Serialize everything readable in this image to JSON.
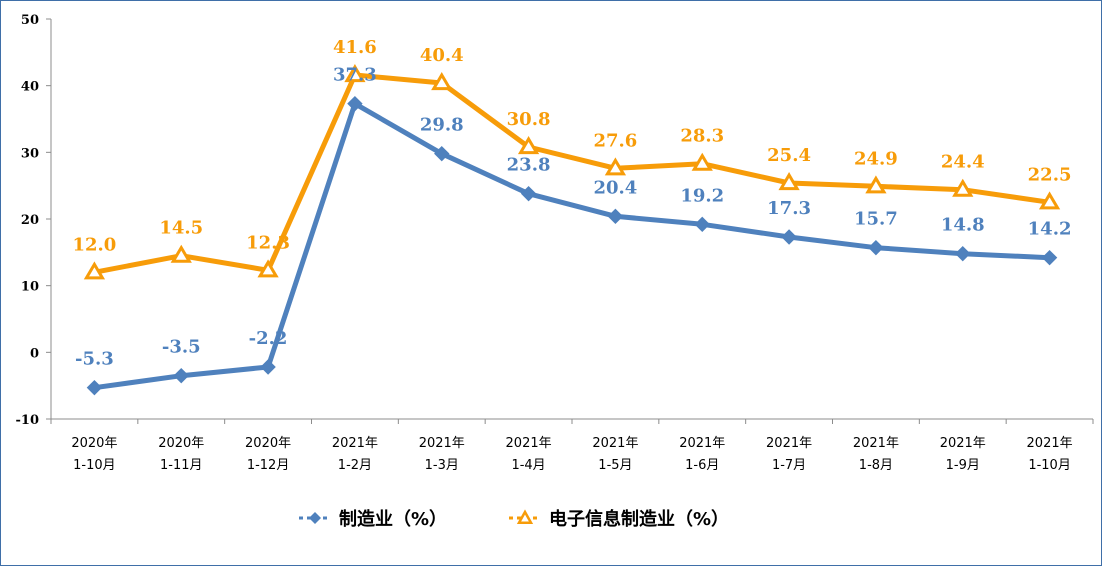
{
  "chart_data": {
    "type": "line",
    "categories": [
      [
        "2020年",
        "1-10月"
      ],
      [
        "2020年",
        "1-11月"
      ],
      [
        "2020年",
        "1-12月"
      ],
      [
        "2021年",
        "1-2月"
      ],
      [
        "2021年",
        "1-3月"
      ],
      [
        "2021年",
        "1-4月"
      ],
      [
        "2021年",
        "1-5月"
      ],
      [
        "2021年",
        "1-6月"
      ],
      [
        "2021年",
        "1-7月"
      ],
      [
        "2021年",
        "1-8月"
      ],
      [
        "2021年",
        "1-9月"
      ],
      [
        "2021年",
        "1-10月"
      ]
    ],
    "ylim": [
      -10,
      50
    ],
    "yticks": [
      "-10",
      "0",
      "10",
      "20",
      "30",
      "40",
      "50"
    ],
    "grid": false,
    "legend_position": "bottom",
    "series": [
      {
        "name": "制造业（%）",
        "color": "#4f81bd",
        "marker": "diamond",
        "values": [
          -5.3,
          -3.5,
          -2.2,
          37.3,
          29.8,
          23.8,
          20.4,
          19.2,
          17.3,
          15.7,
          14.8,
          14.2
        ],
        "labels": [
          "-5.3",
          "-3.5",
          "-2.2",
          "37.3",
          "29.8",
          "23.8",
          "20.4",
          "19.2",
          "17.3",
          "15.7",
          "14.8",
          "14.2"
        ]
      },
      {
        "name": "电子信息制造业（%）",
        "color": "#f79c09",
        "marker": "triangle",
        "values": [
          12.0,
          14.5,
          12.3,
          41.6,
          40.4,
          30.8,
          27.6,
          28.3,
          25.4,
          24.9,
          24.4,
          22.5
        ],
        "labels": [
          "12.0",
          "14.5",
          "12.3",
          "41.6",
          "40.4",
          "30.8",
          "27.6",
          "28.3",
          "25.4",
          "24.9",
          "24.4",
          "22.5"
        ]
      }
    ]
  }
}
